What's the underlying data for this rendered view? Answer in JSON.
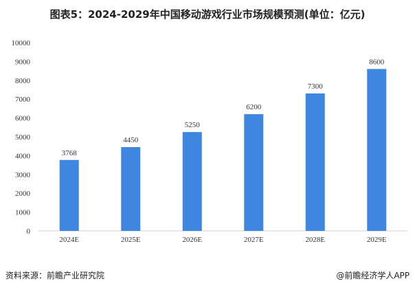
{
  "chart_data": {
    "type": "bar",
    "title": "图表5：2024-2029年中国移动游戏行业市场规模预测(单位：亿元)",
    "xlabel": "",
    "ylabel": "",
    "categories": [
      "2024E",
      "2025E",
      "2026E",
      "2027E",
      "2028E",
      "2029E"
    ],
    "values": [
      3768,
      4450,
      5250,
      6200,
      7300,
      8600
    ],
    "ylim": [
      0,
      10000
    ],
    "yticks": [
      0,
      1000,
      2000,
      3000,
      4000,
      5000,
      6000,
      7000,
      8000,
      9000,
      10000
    ],
    "grid": false,
    "bar_color": "#3e86e0"
  },
  "footer": {
    "source": "资料来源：前瞻产业研究院",
    "credit": "@前瞻经济学人APP"
  }
}
